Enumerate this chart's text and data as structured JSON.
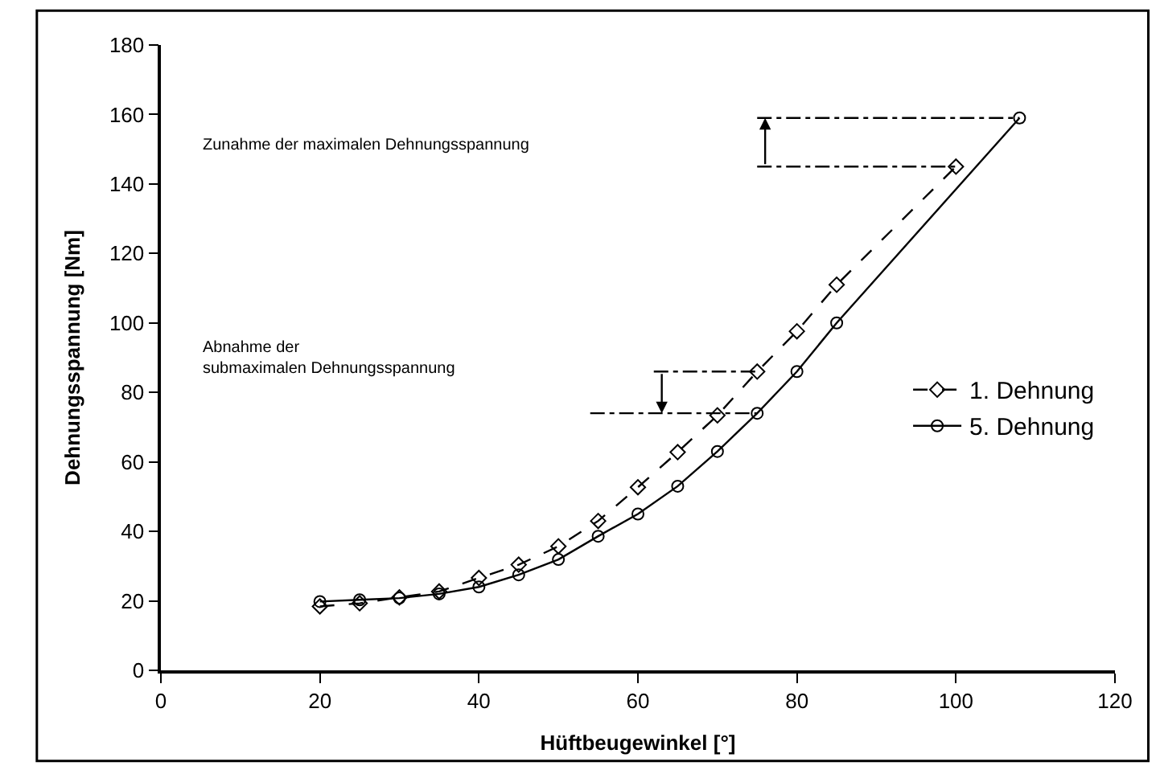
{
  "chart_data": {
    "type": "line",
    "xlabel": "Hüftbeugewinkel [°]",
    "ylabel": "Dehnungsspannung [Nm]",
    "xlim": [
      0,
      120
    ],
    "xticks": [
      0,
      20,
      40,
      60,
      80,
      100,
      120
    ],
    "ylim": [
      0,
      180
    ],
    "yticks": [
      0,
      20,
      40,
      60,
      80,
      100,
      120,
      140,
      160,
      180
    ],
    "legend": "right",
    "series": [
      {
        "name": "1. Dehnung",
        "color": "#000000",
        "line_style": "dashed",
        "marker": "diamond",
        "x": [
          20,
          25,
          30,
          35,
          40,
          45,
          50,
          55,
          60,
          65,
          70,
          75,
          80,
          85,
          100
        ],
        "values": [
          18.4,
          19.3,
          21,
          22.7,
          26.6,
          30.4,
          35.7,
          43,
          52.7,
          62.8,
          73.4,
          86,
          97.6,
          111,
          145
        ]
      },
      {
        "name": "5. Dehnung",
        "color": "#000000",
        "line_style": "solid",
        "marker": "circle",
        "x": [
          20,
          25,
          30,
          35,
          40,
          45,
          50,
          55,
          60,
          65,
          70,
          75,
          80,
          85,
          108
        ],
        "values": [
          19.8,
          20.3,
          20.8,
          22,
          24,
          27.5,
          31.9,
          38.6,
          45,
          53,
          63,
          74,
          86,
          100,
          159
        ]
      },
      {
        "color": "#000000",
        "line_style": "dotted",
        "marker": "none",
        "x": [
          75,
          108
        ],
        "values": [
          159,
          159
        ]
      },
      {
        "color": "#000000",
        "line_style": "dotted",
        "marker": "none",
        "x": [
          75,
          100
        ],
        "values": [
          145,
          145
        ]
      },
      {
        "color": "#000000",
        "line_style": "dotted",
        "marker": "none",
        "x": [
          54,
          75
        ],
        "values": [
          74,
          74
        ]
      },
      {
        "color": "#000000",
        "line_style": "dotted",
        "marker": "none",
        "x": [
          62,
          75
        ],
        "values": [
          86,
          86
        ]
      }
    ],
    "annotations": [
      "Zunahme der maximalen Dehnungsspannung",
      "Abnahme der\nsubmaximalen Dehnungsspannung"
    ]
  }
}
